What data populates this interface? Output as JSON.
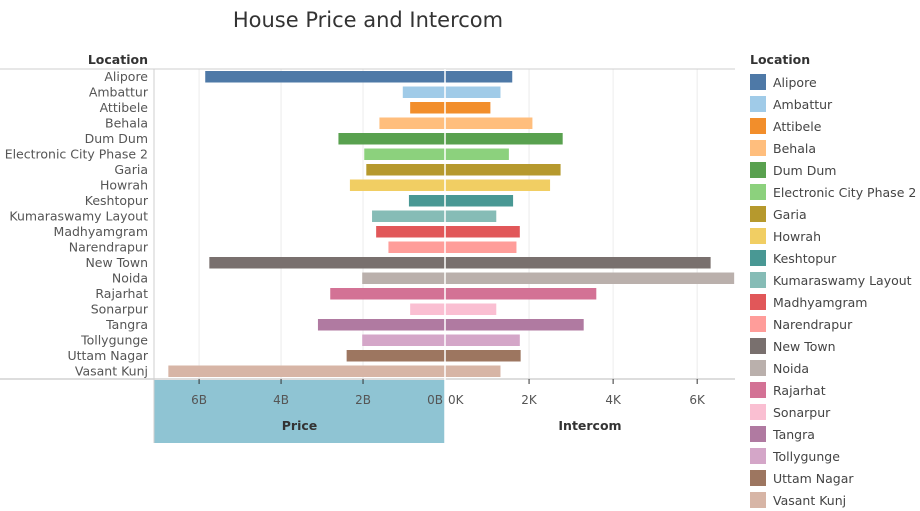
{
  "chart_data": {
    "type": "bar",
    "title": "House Price and Intercom",
    "row_header": "Location",
    "categories": [
      "Alipore",
      "Ambattur",
      "Attibele",
      "Behala",
      "Dum Dum",
      "Electronic City Phase 2",
      "Garia",
      "Howrah",
      "Keshtopur",
      "Kumaraswamy Layout",
      "Madhyamgram",
      "Narendrapur",
      "New Town",
      "Noida",
      "Rajarhat",
      "Sonarpur",
      "Tangra",
      "Tollygunge",
      "Uttam Nagar",
      "Vasant Kunj"
    ],
    "colors": [
      "#4e79a7",
      "#a0cbe8",
      "#f28e2b",
      "#ffbe7d",
      "#59a14f",
      "#8cd17d",
      "#b6992d",
      "#f1ce63",
      "#499894",
      "#86bcb6",
      "#e15759",
      "#ff9d9a",
      "#79706e",
      "#bab0ac",
      "#d37295",
      "#fabfd2",
      "#b07aa1",
      "#d4a6c8",
      "#9d7660",
      "#d7b5a6"
    ],
    "panels": [
      {
        "name": "Price",
        "axis_label": "Price",
        "reversed": true,
        "xlim": [
          0,
          7.1
        ],
        "ticks": [
          6,
          4,
          2,
          0
        ],
        "tick_labels": [
          "6B",
          "4B",
          "2B",
          "0B"
        ],
        "values": [
          5.85,
          1.03,
          0.85,
          1.6,
          2.6,
          1.97,
          1.92,
          2.32,
          0.88,
          1.78,
          1.68,
          1.38,
          5.75,
          2.02,
          2.8,
          0.85,
          3.1,
          2.02,
          2.4,
          6.75
        ]
      },
      {
        "name": "Intercom",
        "axis_label": "Intercom",
        "reversed": false,
        "xlim": [
          0,
          6.9
        ],
        "ticks": [
          0,
          2,
          4,
          6
        ],
        "tick_labels": [
          "0K",
          "2K",
          "4K",
          "6K"
        ],
        "values": [
          1.6,
          1.32,
          1.08,
          2.08,
          2.8,
          1.52,
          2.75,
          2.5,
          1.62,
          1.22,
          1.78,
          1.7,
          6.32,
          6.88,
          3.6,
          1.22,
          3.3,
          1.78,
          1.8,
          1.32
        ]
      }
    ],
    "grid": true,
    "legend": {
      "title": "Location",
      "position": "right"
    }
  }
}
